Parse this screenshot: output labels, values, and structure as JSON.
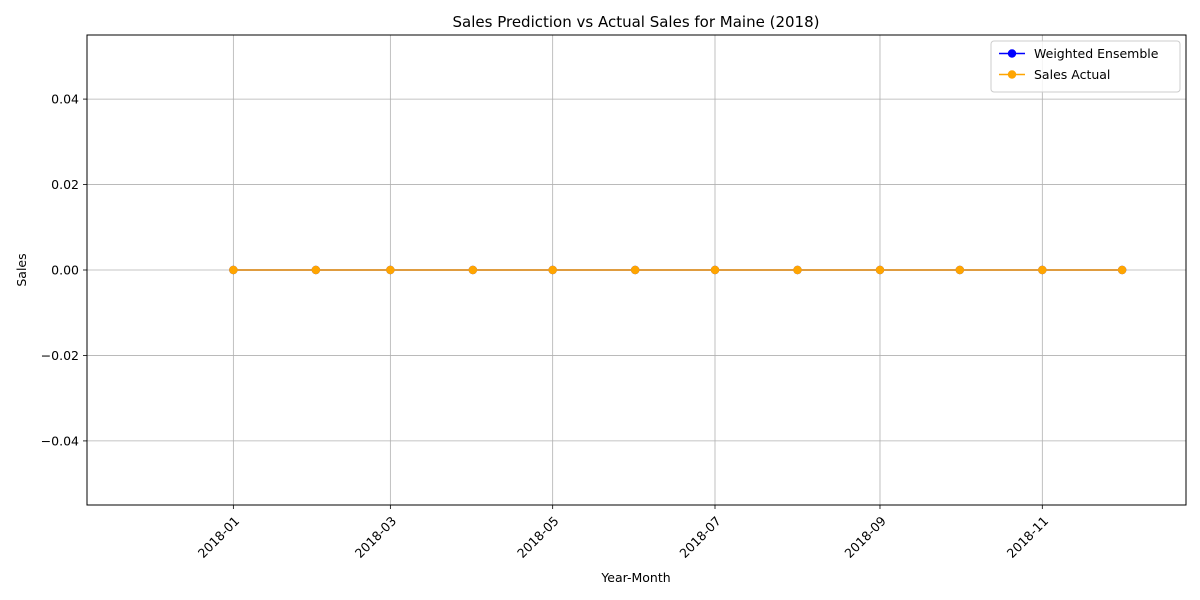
{
  "chart_data": {
    "type": "line",
    "title": "Sales Prediction vs Actual Sales for Maine (2018)",
    "xlabel": "Year-Month",
    "ylabel": "Sales",
    "x": [
      "2018-01-01",
      "2018-02-01",
      "2018-03-01",
      "2018-04-01",
      "2018-05-01",
      "2018-06-01",
      "2018-07-01",
      "2018-08-01",
      "2018-09-01",
      "2018-10-01",
      "2018-11-01",
      "2018-12-01"
    ],
    "x_ticks": [
      "2018-01",
      "2018-03",
      "2018-05",
      "2018-07",
      "2018-09",
      "2018-11"
    ],
    "x_tick_dates": [
      "2018-01-01",
      "2018-03-01",
      "2018-05-01",
      "2018-07-01",
      "2018-09-01",
      "2018-11-01"
    ],
    "xlim": [
      "2017-11-07",
      "2018-12-25"
    ],
    "ylim": [
      -0.055,
      0.055
    ],
    "y_ticks": [
      -0.04,
      -0.02,
      0.0,
      0.02,
      0.04
    ],
    "y_tick_labels": [
      "−0.04",
      "−0.02",
      "0.00",
      "0.02",
      "0.04"
    ],
    "grid": true,
    "legend_position": "top-right",
    "series": [
      {
        "name": "Weighted Ensemble",
        "color": "#0000ff",
        "marker": "circle",
        "values": [
          0,
          0,
          0,
          0,
          0,
          0,
          0,
          0,
          0,
          0,
          0,
          0
        ]
      },
      {
        "name": "Sales Actual",
        "color": "#ffa500",
        "marker": "circle",
        "values": [
          0,
          0,
          0,
          0,
          0,
          0,
          0,
          0,
          0,
          0,
          0,
          0
        ]
      }
    ]
  }
}
